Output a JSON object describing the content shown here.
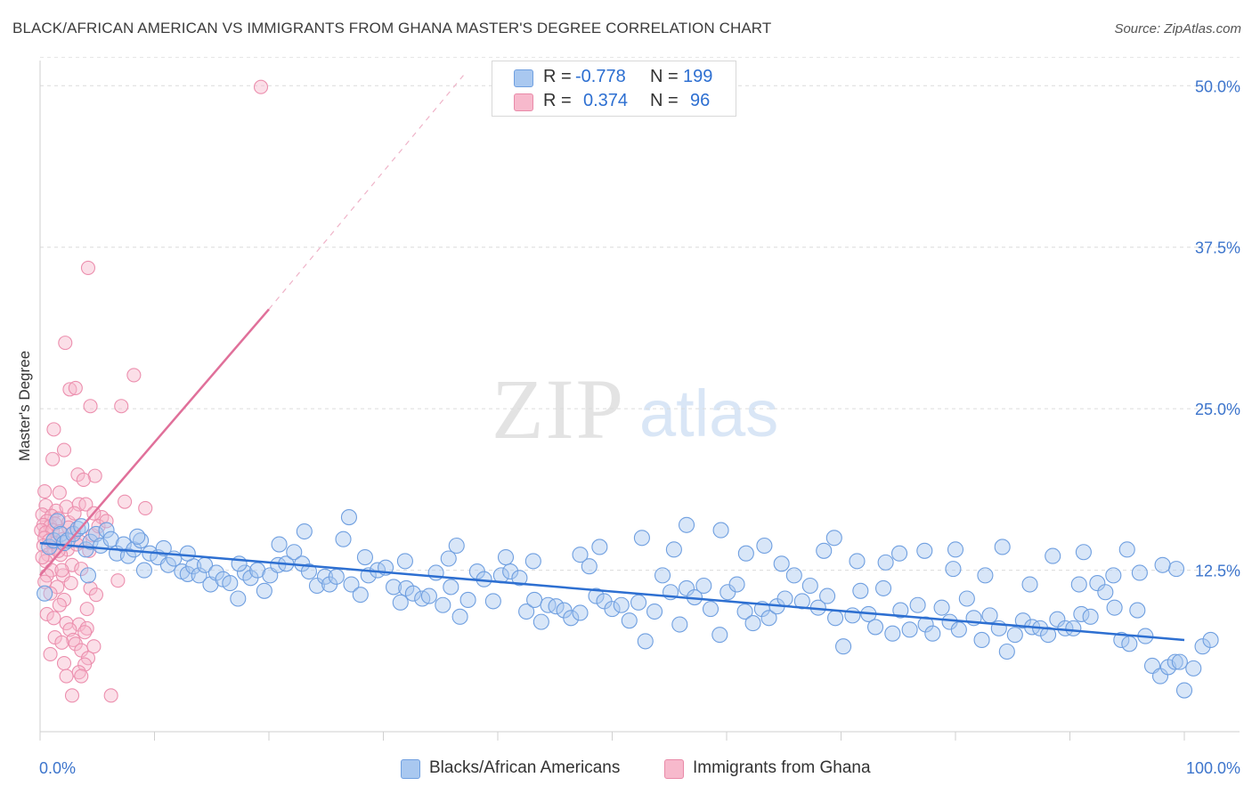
{
  "title": "BLACK/AFRICAN AMERICAN VS IMMIGRANTS FROM GHANA MASTER'S DEGREE CORRELATION CHART",
  "source": "Source: ZipAtlas.com",
  "watermark": {
    "zip": "ZIP",
    "atlas": "atlas"
  },
  "legend": {
    "rows": [
      {
        "r_label": "R =",
        "r_value": "-0.778",
        "n_label": "N =",
        "n_value": "199",
        "color": "#a9c8f0",
        "border": "#6f9fe0"
      },
      {
        "r_label": "R =",
        "r_value": "0.374",
        "n_label": "N =",
        "n_value": "96",
        "color": "#f7b9cc",
        "border": "#e98aa8"
      }
    ]
  },
  "bottom_legend": [
    {
      "label": "Blacks/African Americans",
      "color": "#a9c8f0",
      "border": "#6f9fe0"
    },
    {
      "label": "Immigrants from Ghana",
      "color": "#f7b9cc",
      "border": "#e98aa8"
    }
  ],
  "chart_data": {
    "type": "scatter",
    "ylabel": "Master's Degree",
    "xlim": [
      0,
      100
    ],
    "ylim": [
      0,
      52.5
    ],
    "x_tick_labels": [
      "0.0%",
      "100.0%"
    ],
    "y_ticks": [
      12.5,
      25.0,
      37.5,
      50.0
    ],
    "y_tick_labels": [
      "12.5%",
      "25.0%",
      "37.5%",
      "50.0%"
    ],
    "grid": "horizontal dashed",
    "legend_position": "top-center",
    "colors": {
      "blue": "#2d6fd1",
      "blue_fill": "#a9c8f0",
      "pink": "#e0709a",
      "pink_fill": "#f7b9cc"
    },
    "series": [
      {
        "name": "Blacks/African Americans",
        "trend": {
          "x": [
            0,
            100
          ],
          "y": [
            14.6,
            7.1
          ]
        },
        "points": [
          [
            0.4,
            10.7
          ],
          [
            0.8,
            14.3
          ],
          [
            1.2,
            14.8
          ],
          [
            1.5,
            16.3
          ],
          [
            1.8,
            15.3
          ],
          [
            2.1,
            14.6
          ],
          [
            2.4,
            14.8
          ],
          [
            2.9,
            15.3
          ],
          [
            3.3,
            15.7
          ],
          [
            3.6,
            15.9
          ],
          [
            4.0,
            14.1
          ],
          [
            4.4,
            14.7
          ],
          [
            4.9,
            15.3
          ],
          [
            5.3,
            14.4
          ],
          [
            5.8,
            15.6
          ],
          [
            6.2,
            14.9
          ],
          [
            6.7,
            13.8
          ],
          [
            7.3,
            14.5
          ],
          [
            7.7,
            13.6
          ],
          [
            8.2,
            14.1
          ],
          [
            8.8,
            14.8
          ],
          [
            9.1,
            12.5
          ],
          [
            9.6,
            13.8
          ],
          [
            10.3,
            13.5
          ],
          [
            10.8,
            14.2
          ],
          [
            11.2,
            12.9
          ],
          [
            11.7,
            13.4
          ],
          [
            12.4,
            12.4
          ],
          [
            12.9,
            12.2
          ],
          [
            13.4,
            12.8
          ],
          [
            13.9,
            12.1
          ],
          [
            14.4,
            12.9
          ],
          [
            14.9,
            11.4
          ],
          [
            15.4,
            12.3
          ],
          [
            16.0,
            11.8
          ],
          [
            16.6,
            11.5
          ],
          [
            17.3,
            10.3
          ],
          [
            17.9,
            12.3
          ],
          [
            18.4,
            11.9
          ],
          [
            19.0,
            12.5
          ],
          [
            19.6,
            10.9
          ],
          [
            20.1,
            12.1
          ],
          [
            20.8,
            12.9
          ],
          [
            21.5,
            13.0
          ],
          [
            22.2,
            13.9
          ],
          [
            22.9,
            13.0
          ],
          [
            23.5,
            12.4
          ],
          [
            24.2,
            11.3
          ],
          [
            24.9,
            12.0
          ],
          [
            25.3,
            11.4
          ],
          [
            25.9,
            12.0
          ],
          [
            26.5,
            14.9
          ],
          [
            27.2,
            11.4
          ],
          [
            28.0,
            10.6
          ],
          [
            28.7,
            12.1
          ],
          [
            29.5,
            12.5
          ],
          [
            30.2,
            12.7
          ],
          [
            30.9,
            11.2
          ],
          [
            31.5,
            10.0
          ],
          [
            32.0,
            11.1
          ],
          [
            32.6,
            10.7
          ],
          [
            33.4,
            10.3
          ],
          [
            34.0,
            10.5
          ],
          [
            34.6,
            12.3
          ],
          [
            35.2,
            9.8
          ],
          [
            35.9,
            11.2
          ],
          [
            36.7,
            8.9
          ],
          [
            37.4,
            10.2
          ],
          [
            38.2,
            12.4
          ],
          [
            38.8,
            11.8
          ],
          [
            39.6,
            10.1
          ],
          [
            40.3,
            12.1
          ],
          [
            41.1,
            12.4
          ],
          [
            41.9,
            11.9
          ],
          [
            42.5,
            9.3
          ],
          [
            43.2,
            10.2
          ],
          [
            43.8,
            8.5
          ],
          [
            44.4,
            9.8
          ],
          [
            45.1,
            9.7
          ],
          [
            45.8,
            9.4
          ],
          [
            46.4,
            8.8
          ],
          [
            47.2,
            9.2
          ],
          [
            48.0,
            12.8
          ],
          [
            48.6,
            10.5
          ],
          [
            49.3,
            10.1
          ],
          [
            50.0,
            9.5
          ],
          [
            50.8,
            9.8
          ],
          [
            51.5,
            8.6
          ],
          [
            52.3,
            10.0
          ],
          [
            52.9,
            7.0
          ],
          [
            53.7,
            9.3
          ],
          [
            54.4,
            12.1
          ],
          [
            55.1,
            10.8
          ],
          [
            55.9,
            8.3
          ],
          [
            56.5,
            11.1
          ],
          [
            57.2,
            10.4
          ],
          [
            58.0,
            11.3
          ],
          [
            58.6,
            9.5
          ],
          [
            59.4,
            7.5
          ],
          [
            60.1,
            10.8
          ],
          [
            60.9,
            11.4
          ],
          [
            61.6,
            9.3
          ],
          [
            62.3,
            8.4
          ],
          [
            63.1,
            9.5
          ],
          [
            63.7,
            8.8
          ],
          [
            64.4,
            9.7
          ],
          [
            65.1,
            10.3
          ],
          [
            65.9,
            12.1
          ],
          [
            66.6,
            10.1
          ],
          [
            67.3,
            11.3
          ],
          [
            68.0,
            9.6
          ],
          [
            68.8,
            10.5
          ],
          [
            69.5,
            8.8
          ],
          [
            70.2,
            6.6
          ],
          [
            71.0,
            9.0
          ],
          [
            71.7,
            10.9
          ],
          [
            72.4,
            9.1
          ],
          [
            73.0,
            8.1
          ],
          [
            73.7,
            11.1
          ],
          [
            74.5,
            7.6
          ],
          [
            75.2,
            9.4
          ],
          [
            76.0,
            7.9
          ],
          [
            76.7,
            9.8
          ],
          [
            77.4,
            8.3
          ],
          [
            78.0,
            7.6
          ],
          [
            78.8,
            9.6
          ],
          [
            79.5,
            8.5
          ],
          [
            80.3,
            7.9
          ],
          [
            81.0,
            10.3
          ],
          [
            81.6,
            8.8
          ],
          [
            82.3,
            7.1
          ],
          [
            83.0,
            9.0
          ],
          [
            83.8,
            8.0
          ],
          [
            84.5,
            6.2
          ],
          [
            85.2,
            7.5
          ],
          [
            85.9,
            8.6
          ],
          [
            86.7,
            8.1
          ],
          [
            87.4,
            8.0
          ],
          [
            88.1,
            7.5
          ],
          [
            88.9,
            8.7
          ],
          [
            89.6,
            8.0
          ],
          [
            90.3,
            8.0
          ],
          [
            91.0,
            9.1
          ],
          [
            91.8,
            8.9
          ],
          [
            92.4,
            11.5
          ],
          [
            93.1,
            10.8
          ],
          [
            93.9,
            9.6
          ],
          [
            94.5,
            7.1
          ],
          [
            95.2,
            6.8
          ],
          [
            95.9,
            9.4
          ],
          [
            96.6,
            7.4
          ],
          [
            97.2,
            5.1
          ],
          [
            97.9,
            4.3
          ],
          [
            98.6,
            5.0
          ],
          [
            99.2,
            5.4
          ],
          [
            99.6,
            5.4
          ],
          [
            100.0,
            3.2
          ],
          [
            100.8,
            4.9
          ],
          [
            101.6,
            6.6
          ],
          [
            102.3,
            7.1
          ],
          [
            8.5,
            15.1
          ],
          [
            23.1,
            15.5
          ],
          [
            27.0,
            16.6
          ],
          [
            35.7,
            13.4
          ],
          [
            40.7,
            13.5
          ],
          [
            47.2,
            13.7
          ],
          [
            52.6,
            15.0
          ],
          [
            56.5,
            16.0
          ],
          [
            59.5,
            15.6
          ],
          [
            63.3,
            14.4
          ],
          [
            68.5,
            14.0
          ],
          [
            69.4,
            15.0
          ],
          [
            73.9,
            13.1
          ],
          [
            77.3,
            14.0
          ],
          [
            79.8,
            12.6
          ],
          [
            82.6,
            12.1
          ],
          [
            86.5,
            11.4
          ],
          [
            90.8,
            11.4
          ],
          [
            93.8,
            12.1
          ],
          [
            96.1,
            12.3
          ],
          [
            99.3,
            12.6
          ],
          [
            4.2,
            12.1
          ],
          [
            12.9,
            13.8
          ],
          [
            17.4,
            13.0
          ],
          [
            20.9,
            14.5
          ],
          [
            28.4,
            13.5
          ],
          [
            31.9,
            13.2
          ],
          [
            36.4,
            14.4
          ],
          [
            43.1,
            13.2
          ],
          [
            48.9,
            14.3
          ],
          [
            55.4,
            14.1
          ],
          [
            61.7,
            13.8
          ],
          [
            64.8,
            13.0
          ],
          [
            71.4,
            13.2
          ],
          [
            75.1,
            13.8
          ],
          [
            80.0,
            14.1
          ],
          [
            84.1,
            14.3
          ],
          [
            88.5,
            13.6
          ],
          [
            91.2,
            13.9
          ],
          [
            95.0,
            14.1
          ],
          [
            98.1,
            12.9
          ]
        ]
      },
      {
        "name": "Immigrants from Ghana",
        "trend": {
          "x": [
            0,
            20
          ],
          "y": [
            12.1,
            32.7
          ]
        },
        "trend_extension": {
          "x": [
            20,
            37
          ],
          "y": [
            32.7,
            50.8
          ]
        },
        "points": [
          [
            19.3,
            49.9
          ],
          [
            4.2,
            35.9
          ],
          [
            2.2,
            30.1
          ],
          [
            8.2,
            27.6
          ],
          [
            2.6,
            26.5
          ],
          [
            3.1,
            26.6
          ],
          [
            4.4,
            25.2
          ],
          [
            7.1,
            25.2
          ],
          [
            1.2,
            23.4
          ],
          [
            2.1,
            21.8
          ],
          [
            1.1,
            21.1
          ],
          [
            3.3,
            19.9
          ],
          [
            4.8,
            19.8
          ],
          [
            3.8,
            19.5
          ],
          [
            0.4,
            18.6
          ],
          [
            1.7,
            18.5
          ],
          [
            7.4,
            17.8
          ],
          [
            9.2,
            17.3
          ],
          [
            0.5,
            17.5
          ],
          [
            1.4,
            17.1
          ],
          [
            2.3,
            17.4
          ],
          [
            3.4,
            17.6
          ],
          [
            0.2,
            16.8
          ],
          [
            4.0,
            17.6
          ],
          [
            1.0,
            16.7
          ],
          [
            5.4,
            16.6
          ],
          [
            0.6,
            16.3
          ],
          [
            1.6,
            16.5
          ],
          [
            2.5,
            16.2
          ],
          [
            0.3,
            16.0
          ],
          [
            0.9,
            15.9
          ],
          [
            1.3,
            16.1
          ],
          [
            0.1,
            15.6
          ],
          [
            0.5,
            15.4
          ],
          [
            1.1,
            15.6
          ],
          [
            1.7,
            15.5
          ],
          [
            2.9,
            15.4
          ],
          [
            4.6,
            15.2
          ],
          [
            0.4,
            15.0
          ],
          [
            0.8,
            14.8
          ],
          [
            1.4,
            14.6
          ],
          [
            2.0,
            14.9
          ],
          [
            3.5,
            14.7
          ],
          [
            0.3,
            14.4
          ],
          [
            1.2,
            14.2
          ],
          [
            2.4,
            14.1
          ],
          [
            4.3,
            14.0
          ],
          [
            0.7,
            13.7
          ],
          [
            1.8,
            13.7
          ],
          [
            0.5,
            13.2
          ],
          [
            2.8,
            12.9
          ],
          [
            1.0,
            12.5
          ],
          [
            3.6,
            12.6
          ],
          [
            0.6,
            12.1
          ],
          [
            2.0,
            12.1
          ],
          [
            6.8,
            11.7
          ],
          [
            0.4,
            11.6
          ],
          [
            1.5,
            11.2
          ],
          [
            4.4,
            11.1
          ],
          [
            0.9,
            10.7
          ],
          [
            2.1,
            10.2
          ],
          [
            4.9,
            10.6
          ],
          [
            1.7,
            9.8
          ],
          [
            4.1,
            9.5
          ],
          [
            0.6,
            9.1
          ],
          [
            1.2,
            8.8
          ],
          [
            2.3,
            8.4
          ],
          [
            3.4,
            8.3
          ],
          [
            4.1,
            8.0
          ],
          [
            2.6,
            7.9
          ],
          [
            3.9,
            7.7
          ],
          [
            1.3,
            7.3
          ],
          [
            2.9,
            7.1
          ],
          [
            1.9,
            6.9
          ],
          [
            3.1,
            6.8
          ],
          [
            4.7,
            6.6
          ],
          [
            3.6,
            6.3
          ],
          [
            0.9,
            6.0
          ],
          [
            4.2,
            5.7
          ],
          [
            2.1,
            5.3
          ],
          [
            3.9,
            5.2
          ],
          [
            3.4,
            4.6
          ],
          [
            2.3,
            4.3
          ],
          [
            3.6,
            4.3
          ],
          [
            2.8,
            2.8
          ],
          [
            6.2,
            2.8
          ],
          [
            2.5,
            15.8
          ],
          [
            3.0,
            16.9
          ],
          [
            1.6,
            14.0
          ],
          [
            5.1,
            15.9
          ],
          [
            0.2,
            13.5
          ],
          [
            4.7,
            16.9
          ],
          [
            3.2,
            14.5
          ],
          [
            5.8,
            16.3
          ],
          [
            1.9,
            12.5
          ],
          [
            2.7,
            11.5
          ]
        ]
      }
    ]
  }
}
